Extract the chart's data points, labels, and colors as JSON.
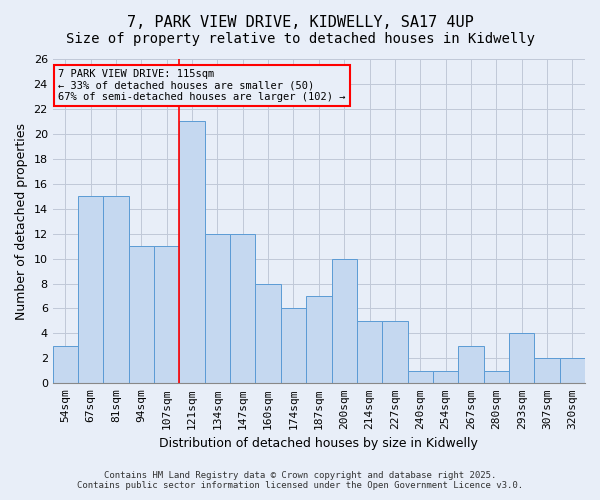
{
  "title": "7, PARK VIEW DRIVE, KIDWELLY, SA17 4UP",
  "subtitle": "Size of property relative to detached houses in Kidwelly",
  "xlabel": "Distribution of detached houses by size in Kidwelly",
  "ylabel": "Number of detached properties",
  "footer_line1": "Contains HM Land Registry data © Crown copyright and database right 2025.",
  "footer_line2": "Contains public sector information licensed under the Open Government Licence v3.0.",
  "categories": [
    "54sqm",
    "67sqm",
    "81sqm",
    "94sqm",
    "107sqm",
    "121sqm",
    "134sqm",
    "147sqm",
    "160sqm",
    "174sqm",
    "187sqm",
    "200sqm",
    "214sqm",
    "227sqm",
    "240sqm",
    "254sqm",
    "267sqm",
    "280sqm",
    "293sqm",
    "307sqm",
    "320sqm"
  ],
  "values": [
    3,
    15,
    15,
    11,
    11,
    21,
    12,
    12,
    8,
    6,
    7,
    10,
    5,
    5,
    1,
    1,
    3,
    1,
    4,
    2,
    2
  ],
  "bar_color": "#c5d8f0",
  "bar_edge_color": "#5b9bd5",
  "grid_color": "#c0c8d8",
  "background_color": "#e8eef8",
  "annotation_box_text": "7 PARK VIEW DRIVE: 115sqm\n← 33% of detached houses are smaller (50)\n67% of semi-detached houses are larger (102) →",
  "annotation_box_color": "red",
  "vline_x_index": 4.5,
  "property_size_sqm": 115,
  "ylim": [
    0,
    26
  ],
  "yticks": [
    0,
    2,
    4,
    6,
    8,
    10,
    12,
    14,
    16,
    18,
    20,
    22,
    24,
    26
  ],
  "title_fontsize": 11,
  "subtitle_fontsize": 10,
  "label_fontsize": 9,
  "tick_fontsize": 8,
  "annotation_fontsize": 7.5,
  "footer_fontsize": 6.5
}
